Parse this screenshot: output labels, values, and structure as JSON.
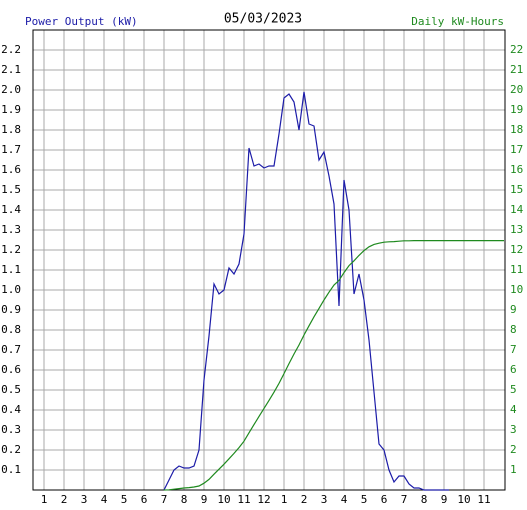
{
  "chart_data": {
    "type": "line",
    "title": "05/03/2023",
    "y_label": "Power Output (kW)",
    "y2_label": "Daily kW-Hours",
    "grid": true,
    "xlim": [
      0.45,
      24.05
    ],
    "ylim": [
      0,
      2.3
    ],
    "y2lim": [
      0,
      23
    ],
    "xticks": [
      1,
      2,
      3,
      4,
      5,
      6,
      7,
      8,
      9,
      10,
      11,
      12,
      {
        "value": 13,
        "label": "1"
      },
      {
        "value": 14,
        "label": "2"
      },
      {
        "value": 15,
        "label": "3"
      },
      {
        "value": 16,
        "label": "4"
      },
      {
        "value": 17,
        "label": "5"
      },
      {
        "value": 18,
        "label": "6"
      },
      {
        "value": 19,
        "label": "7"
      },
      {
        "value": 20,
        "label": "8"
      },
      {
        "value": 21,
        "label": "9"
      },
      {
        "value": 22,
        "label": "10"
      },
      {
        "value": 23,
        "label": "11"
      }
    ],
    "yticks": [
      0.1,
      0.2,
      0.3,
      0.4,
      0.5,
      0.6,
      0.7,
      0.8,
      0.9,
      {
        "value": 1,
        "label": "1.0"
      },
      1.1,
      1.2,
      1.3,
      1.4,
      1.5,
      1.6,
      1.7,
      1.8,
      1.9,
      {
        "value": 2,
        "label": "2.0"
      },
      2.1,
      2.2
    ],
    "y2ticks": [
      1,
      2,
      3,
      4,
      5,
      6,
      7,
      8,
      9,
      10,
      11,
      12,
      13,
      14,
      15,
      16,
      17,
      18,
      19,
      20,
      21,
      22
    ],
    "y_color": "#1c1ca8",
    "y2_color": "#1f8a1f",
    "series": [
      {
        "color": "#1c1ca8",
        "x": [
          7,
          7.25,
          7.5,
          7.75,
          8,
          8.25,
          8.5,
          8.75,
          9,
          9.25,
          9.5,
          9.75,
          10,
          10.25,
          10.5,
          10.75,
          11,
          11.25,
          11.5,
          11.75,
          12,
          12.25,
          12.5,
          12.75,
          13,
          13.25,
          13.5,
          13.75,
          14,
          14.25,
          14.5,
          14.75,
          15,
          15.25,
          15.5,
          15.75,
          16,
          16.25,
          16.5,
          16.75,
          17,
          17.25,
          17.5,
          17.75,
          18,
          18.25,
          18.5,
          18.75,
          19,
          19.25,
          19.5,
          19.75,
          20,
          20.25,
          20.5,
          20.75,
          21,
          21.25
        ],
        "values": [
          0,
          0.05,
          0.1,
          0.12,
          0.11,
          0.11,
          0.12,
          0.2,
          0.55,
          0.77,
          1.03,
          0.98,
          1.0,
          1.11,
          1.08,
          1.13,
          1.28,
          1.71,
          1.62,
          1.63,
          1.61,
          1.62,
          1.62,
          1.78,
          1.96,
          1.98,
          1.94,
          1.8,
          1.99,
          1.83,
          1.82,
          1.65,
          1.69,
          1.57,
          1.43,
          0.92,
          1.55,
          1.4,
          0.98,
          1.08,
          0.95,
          0.75,
          0.49,
          0.23,
          0.2,
          0.1,
          0.04,
          0.07,
          0.07,
          0.03,
          0.01,
          0.01,
          0,
          0,
          0,
          0,
          0,
          0
        ]
      },
      {
        "color": "#1f8a1f",
        "axis": "y2",
        "x": [
          7,
          7.25,
          7.5,
          7.75,
          8,
          8.25,
          8.5,
          8.75,
          9,
          9.25,
          9.5,
          9.75,
          10,
          10.25,
          10.5,
          10.75,
          11,
          11.25,
          11.5,
          11.75,
          12,
          12.25,
          12.5,
          12.75,
          13,
          13.25,
          13.5,
          13.75,
          14,
          14.25,
          14.5,
          14.75,
          15,
          15.25,
          15.5,
          15.75,
          16,
          16.25,
          16.5,
          16.75,
          17,
          17.25,
          17.5,
          17.75,
          18,
          18.25,
          18.5,
          18.75,
          19,
          19.25,
          19.5,
          19.75,
          20,
          24
        ],
        "values": [
          0,
          0.01,
          0.04,
          0.07,
          0.1,
          0.12,
          0.15,
          0.2,
          0.34,
          0.53,
          0.79,
          1.04,
          1.29,
          1.56,
          1.83,
          2.12,
          2.44,
          2.86,
          3.27,
          3.68,
          4.08,
          4.48,
          4.89,
          5.33,
          5.82,
          6.32,
          6.8,
          7.25,
          7.75,
          8.21,
          8.66,
          9.08,
          9.5,
          9.89,
          10.25,
          10.48,
          10.87,
          11.22,
          11.46,
          11.73,
          11.97,
          12.16,
          12.28,
          12.34,
          12.39,
          12.41,
          12.42,
          12.44,
          12.46,
          12.46,
          12.47,
          12.47,
          12.47,
          12.47
        ]
      }
    ]
  }
}
